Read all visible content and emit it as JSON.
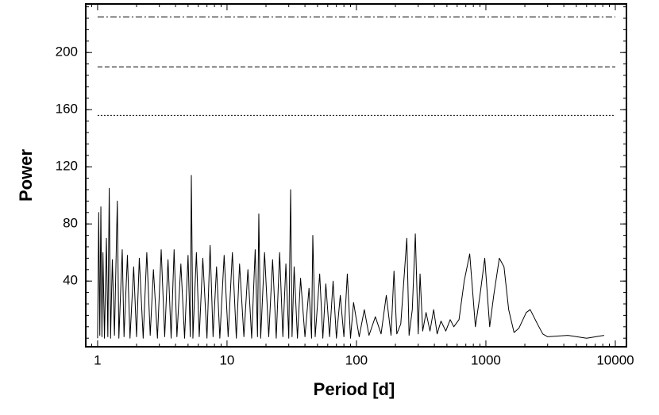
{
  "chart_data": {
    "type": "line",
    "xlabel": "Period [d]",
    "ylabel": "Power",
    "xscale": "log",
    "xlim": [
      0.81,
      12190
    ],
    "ylim": [
      -6,
      234
    ],
    "xticks": [
      1,
      10,
      100,
      1000,
      10000
    ],
    "yticks": [
      40,
      80,
      120,
      160,
      200
    ],
    "color": "#000000",
    "hlines": [
      {
        "value": 225,
        "style": "dashdot"
      },
      {
        "value": 190,
        "style": "dashed"
      },
      {
        "value": 156,
        "style": "dotted"
      }
    ],
    "x": [
      1.0,
      1.02,
      1.04,
      1.06,
      1.08,
      1.1,
      1.13,
      1.17,
      1.2,
      1.23,
      1.26,
      1.3,
      1.35,
      1.42,
      1.46,
      1.55,
      1.6,
      1.7,
      1.78,
      1.9,
      2.0,
      2.1,
      2.25,
      2.4,
      2.55,
      2.7,
      2.9,
      3.1,
      3.3,
      3.5,
      3.7,
      3.9,
      4.1,
      4.4,
      4.7,
      5.0,
      5.2,
      5.3,
      5.45,
      5.8,
      6.1,
      6.5,
      7.0,
      7.4,
      7.8,
      8.3,
      8.8,
      9.5,
      10.2,
      11,
      11.8,
      12.5,
      13.5,
      14.5,
      15.5,
      16.5,
      17.2,
      17.6,
      18.2,
      19.5,
      21,
      22.5,
      24,
      25.5,
      27,
      28.5,
      30,
      31,
      31.8,
      33,
      35,
      37,
      40,
      43,
      45,
      46,
      48,
      52,
      55,
      58,
      62,
      66,
      70,
      75,
      80,
      85,
      90,
      95,
      105,
      115,
      125,
      140,
      155,
      170,
      185,
      195,
      205,
      220,
      245,
      255,
      270,
      285,
      300,
      310,
      325,
      345,
      370,
      395,
      420,
      450,
      490,
      530,
      565,
      620,
      680,
      750,
      830,
      900,
      980,
      1070,
      1150,
      1270,
      1380,
      1500,
      1650,
      1800,
      2050,
      2200,
      2500,
      2750,
      3000,
      4300,
      6000,
      8200
    ],
    "y": [
      0,
      88,
      2,
      92,
      1,
      60,
      0,
      70,
      1,
      105,
      0,
      55,
      2,
      96,
      0,
      62,
      1,
      58,
      0,
      50,
      1,
      56,
      0,
      60,
      2,
      48,
      0,
      62,
      1,
      55,
      0,
      62,
      1,
      52,
      0,
      58,
      1,
      114,
      0,
      60,
      1,
      56,
      0,
      65,
      1,
      50,
      0,
      58,
      1,
      60,
      0,
      52,
      1,
      48,
      0,
      62,
      1,
      87,
      0,
      60,
      1,
      55,
      0,
      60,
      1,
      52,
      0,
      104,
      1,
      50,
      0,
      42,
      1,
      35,
      0,
      72,
      1,
      45,
      0,
      38,
      1,
      40,
      0,
      30,
      1,
      45,
      0,
      25,
      1,
      20,
      2,
      15,
      3,
      30,
      2,
      47,
      3,
      10,
      70,
      2,
      20,
      73,
      3,
      45,
      5,
      18,
      5,
      20,
      3,
      12,
      5,
      13,
      8,
      13,
      40,
      59,
      8,
      30,
      56,
      8,
      30,
      56,
      50,
      20,
      4,
      7,
      18,
      20,
      10,
      3,
      1,
      2,
      0,
      2
    ]
  }
}
